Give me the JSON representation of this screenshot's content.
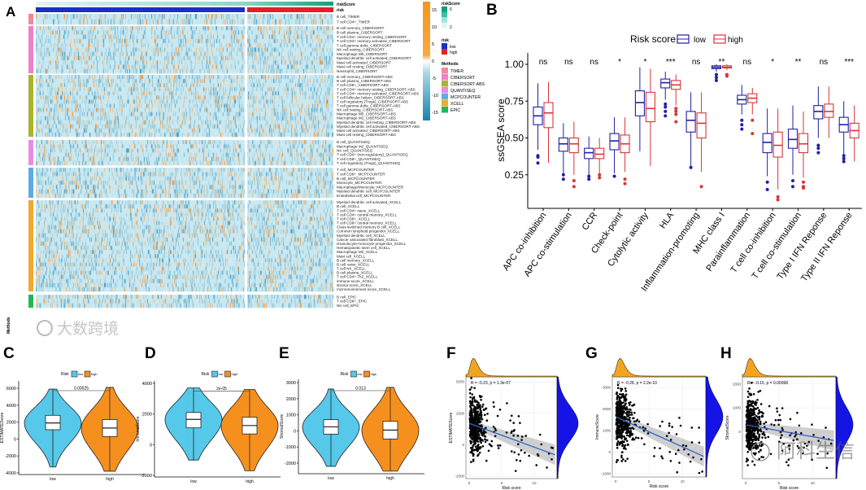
{
  "panels": {
    "A": "A",
    "B": "B",
    "C": "C",
    "D": "D",
    "E": "E",
    "F": "F",
    "G": "G",
    "H": "H"
  },
  "watermarks": [
    "大数跨境",
    "阿科生信"
  ],
  "chart_data": [
    {
      "panel": "A",
      "type": "heatmap",
      "top_annotations": [
        "riskScore",
        "risk"
      ],
      "methods_label": "Methods",
      "legend": {
        "scale_ticks": [
          "15",
          "10",
          "5",
          "0",
          "-5",
          "-10",
          "-15"
        ],
        "riskScore_title": "riskScore",
        "riskScore_ticks": [
          "6",
          "2"
        ],
        "risk_title": "risk",
        "risk_levels": [
          {
            "label": "low",
            "color": "#1c2fc4"
          },
          {
            "label": "high",
            "color": "#e0202a"
          }
        ],
        "methods_title": "Methods"
      },
      "groups": [
        {
          "method": "TIMER",
          "color": "#f2889a",
          "rows": [
            "B cell_TIMER",
            "T cell CD4+_TIMER"
          ]
        },
        {
          "method": "CIBERSORT",
          "color": "#ef7fc9",
          "rows": [
            "B cell memory_CIBERSORT",
            "B cell plasma_CIBERSORT",
            "T cell CD4+ memory resting_CIBERSORT",
            "T cell CD4+ memory activated_CIBERSORT",
            "T cell gamma delta_CIBERSORT",
            "NK cell resting_CIBERSORT",
            "Macrophage M0_CIBERSORT",
            "Myeloid dendritic cell activated_CIBERSORT",
            "Mast cell activated_CIBERSORT",
            "Mast cell resting_CIBERSORT",
            "Neutrophil_CIBERSORT"
          ]
        },
        {
          "method": "CIBERSORT-ABS",
          "color": "#a9b52a",
          "rows": [
            "B cell memory_CIBERSORT-ABS",
            "B cell plasma_CIBERSORT-ABS",
            "T cell CD8+_CIBERSORT-ABS",
            "T cell CD4+ memory resting_CIBERSORT-ABS",
            "T cell CD4+ memory activated_CIBERSORT-ABS",
            "T cell follicular helper_CIBERSORT-ABS",
            "T cell regulatory (Tregs)_CIBERSORT-ABS",
            "T cell gamma delta_CIBERSORT-ABS",
            "NK cell resting_CIBERSORT-ABS",
            "Macrophage M0_CIBERSORT-ABS",
            "Macrophage M2_CIBERSORT-ABS",
            "Myeloid dendritic cell resting_CIBERSORT-ABS",
            "Myeloid dendritic cell activated_CIBERSORT-ABS",
            "Mast cell activated_CIBERSORT-ABS",
            "Mast cell resting_CIBERSORT-ABS"
          ]
        },
        {
          "method": "QUANTISEQ",
          "color": "#e98be6",
          "rows": [
            "B cell_QUANTISEQ",
            "Macrophage M2_QUANTISEQ",
            "NK cell_QUANTISEQ",
            "T cell CD4+ (non-regulatory)_QUANTISEQ",
            "T cell CD8+_QUANTISEQ",
            "T cell regulatory (Tregs)_QUANTISEQ"
          ]
        },
        {
          "method": "MCPCOUNTER",
          "color": "#5ea9e8",
          "rows": [
            "T cell_MCPCOUNTER",
            "T cell CD8+_MCPCOUNTER",
            "B cell_MCPCOUNTER",
            "Monocyte_MCPCOUNTER",
            "Macrophage/Monocyte_MCPCOUNTER",
            "Myeloid dendritic cell_MCPCOUNTER",
            "Endothelial cell_MCPCOUNTER"
          ]
        },
        {
          "method": "XCELL",
          "color": "#f1a82f",
          "rows": [
            "Myeloid dendritic cell activated_XCELL",
            "B cell_XCELL",
            "T cell CD4+ naive_XCELL",
            "T cell CD4+ central memory_XCELL",
            "T cell CD8+_XCELL",
            "T cell CD8+ central memory_XCELL",
            "Class-switched memory B cell_XCELL",
            "Common lymphoid progenitor_XCELL",
            "Myeloid dendritic cell_XCELL",
            "Cancer associated fibroblast_XCELL",
            "Granulocyte-monocyte progenitor_XCELL",
            "Hematopoietic stem cell_XCELL",
            "Macrophage M2_XCELL",
            "Mast cell_XCELL",
            "B cell memory_XCELL",
            "B cell naive_XCELL",
            "T cell NK_XCELL",
            "B cell plasma_XCELL",
            "T cell CD4+ Th2_XCELL",
            "immune score_XCELL",
            "stroma score_XCELL",
            "microenvironment score_XCELL"
          ]
        },
        {
          "method": "EPIC",
          "color": "#22b856",
          "rows": [
            "B cell_EPIC",
            "T cell CD8+_EPIC",
            "NK cell_EPIC"
          ]
        }
      ]
    },
    {
      "panel": "B",
      "type": "box",
      "ylabel": "ssGSEA score",
      "ylim": [
        0.05,
        1.05
      ],
      "yticks": [
        "0.25",
        "0.50",
        "0.75",
        "1.00"
      ],
      "legend": {
        "title": "Risk score",
        "series": [
          {
            "name": "low",
            "color": "#1f1fa8"
          },
          {
            "name": "high",
            "color": "#d9353a"
          }
        ]
      },
      "categories": [
        "APC co-inhibition",
        "APC co-stimulation",
        "CCR",
        "Check-point",
        "Cytolytic activity",
        "HLA",
        "Inflammation-promoting",
        "MHC class I",
        "Parainflammation",
        "T cell co-inhibition",
        "T cell co-stimulation",
        "Type I IFN Reponse",
        "Type II IFN Reponse"
      ],
      "significance": [
        "ns",
        "ns",
        "ns",
        "*",
        "*",
        "***",
        "ns",
        "**",
        "ns",
        "*",
        "**",
        "ns",
        "***"
      ],
      "low": [
        {
          "min": 0.42,
          "q1": 0.59,
          "median": 0.65,
          "q3": 0.71,
          "max": 0.87,
          "outliers": [
            0.38,
            0.37,
            0.33
          ]
        },
        {
          "min": 0.26,
          "q1": 0.41,
          "median": 0.46,
          "q3": 0.5,
          "max": 0.6,
          "outliers": [
            0.25,
            0.22
          ]
        },
        {
          "min": 0.25,
          "q1": 0.36,
          "median": 0.4,
          "q3": 0.43,
          "max": 0.51,
          "outliers": [
            0.24,
            0.22
          ]
        },
        {
          "min": 0.26,
          "q1": 0.42,
          "median": 0.48,
          "q3": 0.53,
          "max": 0.64,
          "outliers": [
            0.24
          ]
        },
        {
          "min": 0.41,
          "q1": 0.65,
          "median": 0.74,
          "q3": 0.82,
          "max": 0.98,
          "outliers": []
        },
        {
          "min": 0.76,
          "q1": 0.84,
          "median": 0.875,
          "q3": 0.9,
          "max": 0.95,
          "outliers": [
            0.73,
            0.71,
            0.68,
            0.65
          ]
        },
        {
          "min": 0.3,
          "q1": 0.54,
          "median": 0.62,
          "q3": 0.68,
          "max": 0.81,
          "outliers": [
            0.3
          ]
        },
        {
          "min": 0.95,
          "q1": 0.97,
          "median": 0.98,
          "q3": 0.99,
          "max": 1.0,
          "outliers": [
            0.93,
            0.91,
            0.89
          ]
        },
        {
          "min": 0.66,
          "q1": 0.73,
          "median": 0.76,
          "q3": 0.79,
          "max": 0.86,
          "outliers": [
            0.62,
            0.59,
            0.56
          ]
        },
        {
          "min": 0.24,
          "q1": 0.4,
          "median": 0.47,
          "q3": 0.53,
          "max": 0.7,
          "outliers": [
            0.2,
            0.15
          ]
        },
        {
          "min": 0.25,
          "q1": 0.43,
          "median": 0.49,
          "q3": 0.56,
          "max": 0.72,
          "outliers": [
            0.21,
            0.17
          ]
        },
        {
          "min": 0.5,
          "q1": 0.63,
          "median": 0.68,
          "q3": 0.72,
          "max": 0.85,
          "outliers": [
            0.45,
            0.43,
            0.4
          ]
        },
        {
          "min": 0.39,
          "q1": 0.54,
          "median": 0.59,
          "q3": 0.64,
          "max": 0.75,
          "outliers": [
            0.38,
            0.36,
            0.34
          ]
        }
      ],
      "high": [
        {
          "min": 0.33,
          "q1": 0.57,
          "median": 0.67,
          "q3": 0.74,
          "max": 0.88,
          "outliers": []
        },
        {
          "min": 0.25,
          "q1": 0.4,
          "median": 0.46,
          "q3": 0.5,
          "max": 0.61,
          "outliers": [
            0.21,
            0.17
          ]
        },
        {
          "min": 0.26,
          "q1": 0.36,
          "median": 0.39,
          "q3": 0.43,
          "max": 0.5,
          "outliers": [
            0.25,
            0.23
          ]
        },
        {
          "min": 0.27,
          "q1": 0.4,
          "median": 0.46,
          "q3": 0.52,
          "max": 0.64,
          "outliers": [
            0.22,
            0.19
          ]
        },
        {
          "min": 0.31,
          "q1": 0.61,
          "median": 0.7,
          "q3": 0.81,
          "max": 0.97,
          "outliers": []
        },
        {
          "min": 0.72,
          "q1": 0.83,
          "median": 0.86,
          "q3": 0.89,
          "max": 0.93,
          "outliers": [
            0.7,
            0.68,
            0.66,
            0.61
          ]
        },
        {
          "min": 0.27,
          "q1": 0.5,
          "median": 0.6,
          "q3": 0.67,
          "max": 0.81,
          "outliers": [
            0.17
          ]
        },
        {
          "min": 0.96,
          "q1": 0.975,
          "median": 0.98,
          "q3": 0.99,
          "max": 1.0,
          "outliers": [
            0.93,
            0.92
          ]
        },
        {
          "min": 0.66,
          "q1": 0.74,
          "median": 0.77,
          "q3": 0.8,
          "max": 0.84,
          "outliers": [
            0.62,
            0.53
          ]
        },
        {
          "min": 0.15,
          "q1": 0.37,
          "median": 0.45,
          "q3": 0.54,
          "max": 0.7,
          "outliers": [
            0.1,
            0.08
          ]
        },
        {
          "min": 0.23,
          "q1": 0.4,
          "median": 0.46,
          "q3": 0.53,
          "max": 0.68,
          "outliers": [
            0.2,
            0.17,
            0.16
          ]
        },
        {
          "min": 0.5,
          "q1": 0.64,
          "median": 0.68,
          "q3": 0.73,
          "max": 0.85,
          "outliers": []
        },
        {
          "min": 0.34,
          "q1": 0.5,
          "median": 0.55,
          "q3": 0.6,
          "max": 0.72,
          "outliers": []
        }
      ]
    },
    {
      "panel": "C",
      "type": "violin",
      "ylabel": "ESTIMATEScore",
      "legend_title": "Risk",
      "legend": [
        "low",
        "high"
      ],
      "categories": [
        "low",
        "high"
      ],
      "colors": [
        "#56c8ea",
        "#f5901e"
      ],
      "ylim": [
        -4200,
        6600
      ],
      "yticks": [
        6000,
        4000,
        2000,
        0,
        -2000,
        -4000
      ],
      "pvalue": "0.00025",
      "groups": [
        {
          "min": -3300,
          "q1": 1100,
          "median": 1900,
          "q3": 2800,
          "max": 5900
        },
        {
          "min": -3800,
          "q1": 300,
          "median": 1300,
          "q3": 2300,
          "max": 6100
        }
      ]
    },
    {
      "panel": "D",
      "type": "violin",
      "ylabel": "ImmuneScore",
      "legend_title": "Risk",
      "legend": [
        "low",
        "high"
      ],
      "categories": [
        "low",
        "high"
      ],
      "colors": [
        "#56c8ea",
        "#f5901e"
      ],
      "ylim": [
        -2000,
        4200
      ],
      "yticks": [
        4000,
        2000,
        0,
        -2000
      ],
      "pvalue": "2e-05",
      "groups": [
        {
          "min": -1000,
          "q1": 1100,
          "median": 1650,
          "q3": 2100,
          "max": 3700
        },
        {
          "min": -1700,
          "q1": 700,
          "median": 1250,
          "q3": 1800,
          "max": 3600
        }
      ]
    },
    {
      "panel": "E",
      "type": "violin",
      "ylabel": "StromalScore",
      "legend_title": "Risk",
      "legend": [
        "low",
        "high"
      ],
      "categories": [
        "low",
        "high"
      ],
      "colors": [
        "#56c8ea",
        "#f5901e"
      ],
      "ylim": [
        -2600,
        3200
      ],
      "yticks": [
        3000,
        2000,
        1000,
        0,
        -1000,
        -2000
      ],
      "pvalue": "0.013",
      "groups": [
        {
          "min": -2200,
          "q1": -200,
          "median": 250,
          "q3": 700,
          "max": 2600
        },
        {
          "min": -2500,
          "q1": -500,
          "median": 50,
          "q3": 600,
          "max": 2700
        }
      ]
    },
    {
      "panel": "F",
      "type": "scatter",
      "xlabel": "Risk score",
      "ylabel": "ESTIMATEScore",
      "xticks": [
        0,
        5,
        10
      ],
      "yticks": [
        5000,
        2500,
        0,
        -2500
      ],
      "xlim": [
        -0.5,
        13.5
      ],
      "ylim": [
        -2700,
        5400
      ],
      "annotation": "R = -0.23, p = 1.3e-07",
      "fit": {
        "intercept": 1700,
        "slope": -190
      },
      "n": 500
    },
    {
      "panel": "G",
      "type": "scatter",
      "xlabel": "Risk score",
      "ylabel": "ImmuneScore",
      "xticks": [
        0,
        5,
        10
      ],
      "yticks": [
        3000,
        2000,
        1000,
        0,
        -1000
      ],
      "xlim": [
        -0.5,
        13.5
      ],
      "ylim": [
        -1150,
        3500
      ],
      "annotation": "R = -0.28, p = 2.2e-10",
      "fit": {
        "intercept": 1650,
        "slope": -140
      },
      "n": 500
    },
    {
      "panel": "H",
      "type": "scatter",
      "xlabel": "Risk score",
      "ylabel": "StromalScore",
      "xticks": [
        0,
        5,
        10
      ],
      "yticks": [
        2000,
        1000,
        0
      ],
      "xlim": [
        -0.5,
        13.5
      ],
      "ylim": [
        -1950,
        2300
      ],
      "annotation": "R = -0.15, p = 0.00068",
      "fit": {
        "intercept": 300,
        "slope": -50
      },
      "n": 500
    }
  ]
}
